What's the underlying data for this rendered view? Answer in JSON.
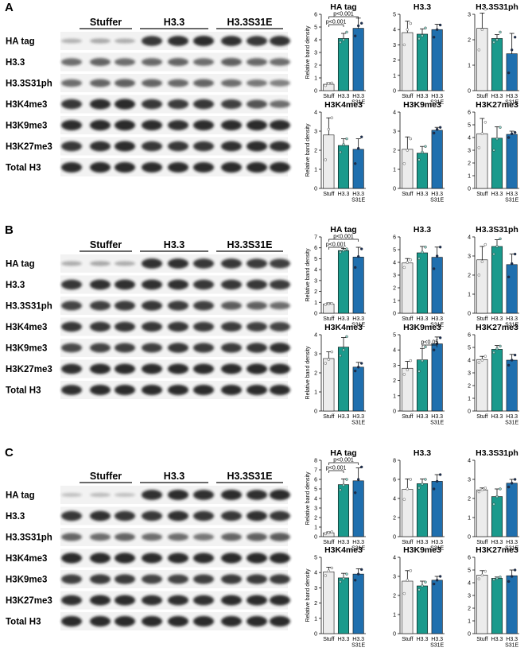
{
  "colors": {
    "stuffer": "#ececec",
    "h33": "#1a9a8c",
    "h33s31e": "#1f6fae",
    "blot_background": "#f2f2f2",
    "band": "#1b1b1b"
  },
  "categories": [
    "Stuff",
    "H3.3",
    "H3.3 S31E"
  ],
  "ylabel": "Relative band density",
  "panels": [
    {
      "letter": "A",
      "groups": [
        "Stuffer",
        "H3.3",
        "H3.3S31E"
      ],
      "rows": [
        {
          "label": "HA tag",
          "bands": [
            0.18,
            0.22,
            0.2,
            0.85,
            0.88,
            0.9,
            0.88,
            0.85,
            0.87
          ]
        },
        {
          "label": "H3.3",
          "bands": [
            0.55,
            0.6,
            0.55,
            0.58,
            0.6,
            0.55,
            0.62,
            0.58,
            0.55
          ]
        },
        {
          "label": "H3.3S31ph",
          "bands": [
            0.55,
            0.6,
            0.62,
            0.6,
            0.58,
            0.6,
            0.55,
            0.5,
            0.45
          ]
        },
        {
          "label": "H3K4me3",
          "bands": [
            0.85,
            0.9,
            0.92,
            0.85,
            0.82,
            0.85,
            0.8,
            0.7,
            0.55
          ]
        },
        {
          "label": "H3K9me3",
          "bands": [
            0.9,
            0.92,
            0.92,
            0.9,
            0.88,
            0.9,
            0.9,
            0.92,
            0.9
          ]
        },
        {
          "label": "H3K27me3",
          "bands": [
            0.85,
            0.88,
            0.9,
            0.85,
            0.85,
            0.85,
            0.88,
            0.9,
            0.88
          ]
        },
        {
          "label": "Total H3",
          "bands": [
            0.9,
            0.92,
            0.92,
            0.9,
            0.9,
            0.9,
            0.92,
            0.92,
            0.92
          ]
        }
      ]
    },
    {
      "letter": "B",
      "groups": [
        "Stuffer",
        "H3.3",
        "H3.3S31E"
      ],
      "rows": [
        {
          "label": "HA tag",
          "bands": [
            0.2,
            0.22,
            0.2,
            0.88,
            0.88,
            0.85,
            0.85,
            0.82,
            0.8
          ]
        },
        {
          "label": "H3.3",
          "bands": [
            0.85,
            0.88,
            0.88,
            0.88,
            0.88,
            0.85,
            0.85,
            0.85,
            0.82
          ]
        },
        {
          "label": "H3.3S31ph",
          "bands": [
            0.78,
            0.8,
            0.82,
            0.85,
            0.82,
            0.8,
            0.65,
            0.62,
            0.55
          ]
        },
        {
          "label": "H3K4me3",
          "bands": [
            0.85,
            0.85,
            0.85,
            0.85,
            0.85,
            0.82,
            0.82,
            0.8,
            0.78
          ]
        },
        {
          "label": "H3K9me3",
          "bands": [
            0.75,
            0.78,
            0.8,
            0.8,
            0.85,
            0.82,
            0.82,
            0.85,
            0.88
          ]
        },
        {
          "label": "H3K27me3",
          "bands": [
            0.88,
            0.9,
            0.9,
            0.9,
            0.9,
            0.9,
            0.9,
            0.92,
            0.9
          ]
        },
        {
          "label": "Total H3",
          "bands": [
            0.88,
            0.9,
            0.9,
            0.9,
            0.9,
            0.9,
            0.9,
            0.9,
            0.9
          ]
        }
      ]
    },
    {
      "letter": "C",
      "groups": [
        "Stuffer",
        "H3.3",
        "H3.3S31E"
      ],
      "rows": [
        {
          "label": "HA tag",
          "bands": [
            0.1,
            0.12,
            0.1,
            0.88,
            0.9,
            0.88,
            0.9,
            0.88,
            0.92
          ]
        },
        {
          "label": "H3.3",
          "bands": [
            0.85,
            0.88,
            0.85,
            0.85,
            0.88,
            0.85,
            0.85,
            0.88,
            0.85
          ]
        },
        {
          "label": "H3.3S31ph",
          "bands": [
            0.6,
            0.55,
            0.6,
            0.55,
            0.55,
            0.5,
            0.6,
            0.62,
            0.65
          ]
        },
        {
          "label": "H3K4me3",
          "bands": [
            0.92,
            0.92,
            0.92,
            0.9,
            0.9,
            0.9,
            0.92,
            0.92,
            0.92
          ]
        },
        {
          "label": "H3K9me3",
          "bands": [
            0.8,
            0.82,
            0.82,
            0.78,
            0.78,
            0.8,
            0.82,
            0.82,
            0.82
          ]
        },
        {
          "label": "H3K27me3",
          "bands": [
            0.88,
            0.9,
            0.9,
            0.88,
            0.88,
            0.88,
            0.9,
            0.9,
            0.9
          ]
        },
        {
          "label": "Total H3",
          "bands": [
            0.92,
            0.92,
            0.92,
            0.92,
            0.92,
            0.92,
            0.92,
            0.92,
            0.92
          ]
        }
      ]
    }
  ],
  "chart_data": [
    {
      "panel": "A",
      "type": "bar",
      "title": "HA tag",
      "categories": [
        "Stuff",
        "H3.3",
        "H3.3 S31E"
      ],
      "ylabel": "Relative band density",
      "ylim": [
        0,
        6
      ],
      "yticks": [
        0,
        1,
        2,
        3,
        4,
        5,
        6
      ],
      "values": [
        0.5,
        4.1,
        4.9
      ],
      "errors": [
        0.12,
        0.4,
        0.8
      ],
      "points": [
        [
          0.4,
          0.55,
          0.6
        ],
        [
          3.8,
          4.0,
          4.6
        ],
        [
          4.3,
          5.1,
          5.3
        ]
      ],
      "significance": [
        {
          "from": 0,
          "to": 1,
          "label": "p<0.001"
        },
        {
          "from": 0,
          "to": 2,
          "label": "p<0.001"
        }
      ]
    },
    {
      "panel": "A",
      "type": "bar",
      "title": "H3.3",
      "categories": [
        "Stuff",
        "H3.3",
        "H3.3 S31E"
      ],
      "ylabel": "Relative band density",
      "ylim": [
        0,
        5
      ],
      "yticks": [
        0,
        1,
        2,
        3,
        4,
        5
      ],
      "values": [
        3.8,
        3.7,
        4.0
      ],
      "errors": [
        0.75,
        0.35,
        0.35
      ],
      "points": [
        [
          3.0,
          4.0,
          4.4
        ],
        [
          3.4,
          3.6,
          4.1
        ],
        [
          3.5,
          4.0,
          4.3
        ]
      ]
    },
    {
      "panel": "A",
      "type": "bar",
      "title": "H3.3S31ph",
      "categories": [
        "Stuff",
        "H3.3",
        "H3.3 S31E"
      ],
      "ylabel": "Relative band density",
      "ylim": [
        0,
        3
      ],
      "yticks": [
        0,
        1,
        2,
        3
      ],
      "values": [
        2.45,
        2.05,
        1.45
      ],
      "errors": [
        0.6,
        0.15,
        0.8
      ],
      "points": [
        [
          1.6,
          2.4,
          3.2
        ],
        [
          1.9,
          2.0,
          2.3
        ],
        [
          0.7,
          1.6,
          2.1
        ]
      ]
    },
    {
      "panel": "A",
      "type": "bar",
      "title": "H3K4me3",
      "categories": [
        "Stuff",
        "H3.3",
        "H3.3 S31E"
      ],
      "ylabel": "Relative band density",
      "ylim": [
        0,
        4
      ],
      "yticks": [
        0,
        1,
        2,
        3,
        4
      ],
      "values": [
        2.8,
        2.25,
        2.05
      ],
      "errors": [
        0.9,
        0.35,
        0.55
      ],
      "points": [
        [
          1.5,
          3.1,
          3.7
        ],
        [
          1.9,
          2.3,
          2.6
        ],
        [
          1.3,
          2.1,
          2.7
        ]
      ]
    },
    {
      "panel": "A",
      "type": "bar",
      "title": "H3K9me3",
      "categories": [
        "Stuff",
        "H3.3",
        "H3.3 S31E"
      ],
      "ylabel": "Relative band density",
      "ylim": [
        0,
        4
      ],
      "yticks": [
        0,
        1,
        2,
        3,
        4
      ],
      "values": [
        2.05,
        1.85,
        3.05
      ],
      "errors": [
        0.65,
        0.35,
        0.15
      ],
      "points": [
        [
          1.3,
          2.0,
          2.6
        ],
        [
          1.5,
          1.9,
          2.2
        ],
        [
          2.9,
          3.1,
          3.2
        ]
      ]
    },
    {
      "panel": "A",
      "type": "bar",
      "title": "H3K27me3",
      "categories": [
        "Stuff",
        "H3.3",
        "H3.3 S31E"
      ],
      "ylabel": "Relative band density",
      "ylim": [
        0,
        6
      ],
      "yticks": [
        0,
        1,
        2,
        3,
        4,
        5,
        6
      ],
      "values": [
        4.3,
        3.95,
        4.25
      ],
      "errors": [
        1.2,
        0.9,
        0.25
      ],
      "points": [
        [
          3.2,
          4.3,
          5.2
        ],
        [
          3.0,
          3.9,
          4.8
        ],
        [
          4.0,
          4.3,
          4.4
        ]
      ]
    },
    {
      "panel": "B",
      "type": "bar",
      "title": "HA tag",
      "categories": [
        "Stuff",
        "H3.3",
        "H3.3 S31E"
      ],
      "ylabel": "Relative band density",
      "ylim": [
        0,
        7
      ],
      "yticks": [
        0,
        1,
        2,
        3,
        4,
        5,
        6,
        7
      ],
      "values": [
        0.85,
        5.75,
        5.15
      ],
      "errors": [
        0.1,
        0.2,
        0.9
      ],
      "points": [
        [
          0.8,
          0.85,
          0.9
        ],
        [
          5.6,
          5.75,
          5.9
        ],
        [
          4.2,
          5.2,
          5.9
        ]
      ],
      "significance": [
        {
          "from": 0,
          "to": 1,
          "label": "p<0.001"
        },
        {
          "from": 0,
          "to": 2,
          "label": "p<0.001"
        }
      ]
    },
    {
      "panel": "B",
      "type": "bar",
      "title": "H3.3",
      "categories": [
        "Stuff",
        "H3.3",
        "H3.3 S31E"
      ],
      "ylabel": "Relative band density",
      "ylim": [
        0,
        6
      ],
      "yticks": [
        0,
        1,
        2,
        3,
        4,
        5,
        6
      ],
      "values": [
        3.95,
        4.75,
        4.4
      ],
      "errors": [
        0.35,
        0.5,
        0.8
      ],
      "points": [
        [
          3.6,
          4.0,
          4.2
        ],
        [
          4.3,
          4.8,
          5.2
        ],
        [
          3.5,
          4.5,
          5.2
        ]
      ]
    },
    {
      "panel": "B",
      "type": "bar",
      "title": "H3.3S31ph",
      "categories": [
        "Stuff",
        "H3.3",
        "H3.3 S31E"
      ],
      "ylabel": "Relative band density",
      "ylim": [
        0,
        4
      ],
      "yticks": [
        0,
        1,
        2,
        3,
        4
      ],
      "values": [
        2.8,
        3.5,
        2.55
      ],
      "errors": [
        0.7,
        0.35,
        0.55
      ],
      "points": [
        [
          2.0,
          2.7,
          3.6
        ],
        [
          3.1,
          3.5,
          3.9
        ],
        [
          1.9,
          2.6,
          3.1
        ]
      ]
    },
    {
      "panel": "B",
      "type": "bar",
      "title": "H3K4me3",
      "categories": [
        "Stuff",
        "H3.3",
        "H3.3 S31E"
      ],
      "ylabel": "Relative band density",
      "ylim": [
        0,
        4
      ],
      "yticks": [
        0,
        1,
        2,
        3,
        4
      ],
      "values": [
        2.75,
        3.35,
        2.3
      ],
      "errors": [
        0.35,
        0.5,
        0.25
      ],
      "points": [
        [
          2.5,
          2.7,
          3.1
        ],
        [
          2.9,
          3.2,
          3.9
        ],
        [
          2.1,
          2.3,
          2.5
        ]
      ]
    },
    {
      "panel": "B",
      "type": "bar",
      "title": "H3K9me3",
      "categories": [
        "Stuff",
        "H3.3",
        "H3.3 S31E"
      ],
      "ylabel": "Relative band density",
      "ylim": [
        0,
        5
      ],
      "yticks": [
        0,
        1,
        2,
        3,
        4,
        5
      ],
      "values": [
        2.8,
        3.35,
        4.4
      ],
      "errors": [
        0.45,
        0.75,
        0.45
      ],
      "points": [
        [
          2.4,
          2.7,
          3.3
        ],
        [
          2.6,
          3.3,
          4.2
        ],
        [
          4.0,
          4.4,
          4.8
        ]
      ],
      "significance": [
        {
          "from": 1,
          "to": 2,
          "label": "p<0.05"
        }
      ]
    },
    {
      "panel": "B",
      "type": "bar",
      "title": "H3K27me3",
      "categories": [
        "Stuff",
        "H3.3",
        "H3.3 S31E"
      ],
      "ylabel": "Relative band density",
      "ylim": [
        0,
        6
      ],
      "yticks": [
        0,
        1,
        2,
        3,
        4,
        5,
        6
      ],
      "values": [
        4.05,
        4.85,
        4.0
      ],
      "errors": [
        0.25,
        0.3,
        0.45
      ],
      "points": [
        [
          3.8,
          4.0,
          4.3
        ],
        [
          4.6,
          4.9,
          5.1
        ],
        [
          3.6,
          4.0,
          4.4
        ]
      ]
    },
    {
      "panel": "C",
      "type": "bar",
      "title": "HA tag",
      "categories": [
        "Stuff",
        "H3.3",
        "H3.3 S31E"
      ],
      "ylabel": "Relative band density",
      "ylim": [
        0,
        8
      ],
      "yticks": [
        0,
        1,
        2,
        3,
        4,
        5,
        6,
        7,
        8
      ],
      "values": [
        0.4,
        5.45,
        5.85
      ],
      "errors": [
        0.1,
        0.6,
        1.35
      ],
      "points": [
        [
          0.3,
          0.4,
          0.5
        ],
        [
          4.9,
          5.4,
          6.0
        ],
        [
          4.6,
          6.0,
          7.3
        ]
      ],
      "significance": [
        {
          "from": 0,
          "to": 1,
          "label": "p<0.001"
        },
        {
          "from": 0,
          "to": 2,
          "label": "p<0.001"
        }
      ]
    },
    {
      "panel": "C",
      "type": "bar",
      "title": "H3.3",
      "categories": [
        "Stuff",
        "H3.3",
        "H3.3 S31E"
      ],
      "ylabel": "Relative band density",
      "ylim": [
        0,
        8
      ],
      "yticks": [
        0,
        2,
        4,
        6,
        8
      ],
      "values": [
        4.95,
        5.55,
        5.8
      ],
      "errors": [
        1.1,
        0.5,
        0.7
      ],
      "points": [
        [
          3.9,
          5.0,
          6.0
        ],
        [
          5.1,
          5.5,
          6.0
        ],
        [
          5.0,
          5.8,
          6.5
        ]
      ]
    },
    {
      "panel": "C",
      "type": "bar",
      "title": "H3.3S31ph",
      "categories": [
        "Stuff",
        "H3.3",
        "H3.3 S31E"
      ],
      "ylabel": "Relative band density",
      "ylim": [
        0,
        4
      ],
      "yticks": [
        0,
        1,
        2,
        3,
        4
      ],
      "values": [
        2.45,
        2.1,
        2.8
      ],
      "errors": [
        0.1,
        0.4,
        0.2
      ],
      "points": [
        [
          2.35,
          2.45,
          2.55
        ],
        [
          1.7,
          2.1,
          2.5
        ],
        [
          2.6,
          2.8,
          3.0
        ]
      ]
    },
    {
      "panel": "C",
      "type": "bar",
      "title": "H3K4me3",
      "categories": [
        "Stuff",
        "H3.3",
        "H3.3 S31E"
      ],
      "ylabel": "Relative band density",
      "ylim": [
        0,
        5
      ],
      "yticks": [
        0,
        1,
        2,
        3,
        4,
        5
      ],
      "values": [
        4.05,
        3.65,
        3.9
      ],
      "errors": [
        0.3,
        0.3,
        0.35
      ],
      "points": [
        [
          3.8,
          4.1,
          4.3
        ],
        [
          3.4,
          3.6,
          3.9
        ],
        [
          3.5,
          3.9,
          4.2
        ]
      ]
    },
    {
      "panel": "C",
      "type": "bar",
      "title": "H3K9me3",
      "categories": [
        "Stuff",
        "H3.3",
        "H3.3 S31E"
      ],
      "ylabel": "Relative band density",
      "ylim": [
        0,
        4
      ],
      "yticks": [
        0,
        1,
        2,
        3,
        4
      ],
      "values": [
        2.75,
        2.5,
        2.8
      ],
      "errors": [
        0.55,
        0.25,
        0.2
      ],
      "points": [
        [
          2.1,
          2.8,
          3.3
        ],
        [
          2.3,
          2.5,
          2.7
        ],
        [
          2.6,
          2.8,
          3.0
        ]
      ]
    },
    {
      "panel": "C",
      "type": "bar",
      "title": "H3K27me3",
      "categories": [
        "Stuff",
        "H3.3",
        "H3.3 S31E"
      ],
      "ylabel": "Relative band density",
      "ylim": [
        0,
        6
      ],
      "yticks": [
        0,
        1,
        2,
        3,
        4,
        5,
        6
      ],
      "values": [
        4.6,
        4.35,
        4.55
      ],
      "errors": [
        0.35,
        0.1,
        0.45
      ],
      "points": [
        [
          4.3,
          4.6,
          4.9
        ],
        [
          4.25,
          4.35,
          4.45
        ],
        [
          4.1,
          4.5,
          5.0
        ]
      ]
    }
  ]
}
